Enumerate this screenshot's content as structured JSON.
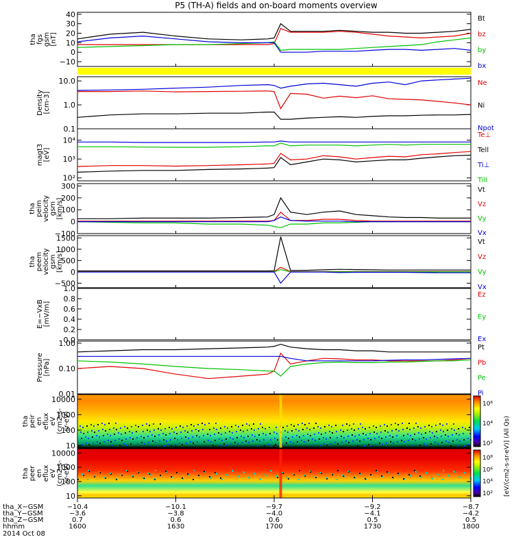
{
  "title": "P5 (TH-A) fields and on-board moments overview",
  "date_label": "2014 Oct 08",
  "colors": {
    "black": "#000000",
    "red": "#e00000",
    "green": "#00c000",
    "blue": "#0000d8",
    "yellow": "#ffff00"
  },
  "chart_data": [
    {
      "type": "line",
      "panel": "fgs",
      "ylabel": [
        "tha",
        "fgs",
        "gsm",
        "[nT]"
      ],
      "ylim": [
        -15,
        42
      ],
      "yticks": [
        -10,
        0,
        10,
        20,
        30,
        40
      ],
      "tick_labels": [
        "−10",
        "0",
        "10",
        "20",
        "30",
        "40"
      ],
      "x": [
        1600,
        1610,
        1620,
        1630,
        1640,
        1650,
        1658,
        1700,
        1702,
        1705,
        1710,
        1715,
        1720,
        1725,
        1730,
        1735,
        1740,
        1745,
        1750,
        1755,
        1800
      ],
      "series": [
        {
          "name": "Bt",
          "color": "black",
          "values": [
            14,
            19,
            21,
            17,
            14,
            13,
            14,
            15,
            30,
            22,
            22,
            22,
            23,
            22,
            21,
            21,
            20,
            20,
            21,
            22,
            24
          ]
        },
        {
          "name": "bz",
          "color": "red",
          "values": [
            8,
            8,
            8,
            8,
            8,
            8,
            8,
            9,
            25,
            21,
            21,
            21,
            22,
            21,
            19,
            17,
            16,
            15,
            16,
            17,
            20
          ]
        },
        {
          "name": "by",
          "color": "green",
          "values": [
            5,
            6,
            7,
            8,
            8,
            9,
            10,
            11,
            2,
            3,
            3,
            3,
            3,
            4,
            5,
            6,
            7,
            8,
            11,
            13,
            15
          ]
        },
        {
          "name": "bx",
          "color": "blue",
          "values": [
            11,
            15,
            17,
            14,
            11,
            10,
            10,
            10,
            0,
            0,
            0,
            1,
            1,
            1,
            2,
            3,
            3,
            2,
            3,
            4,
            2
          ]
        }
      ],
      "band_color": "yellow"
    },
    {
      "type": "line",
      "panel": "density",
      "ylabel": [
        "Density",
        "[cm-3]"
      ],
      "log": true,
      "ylim": [
        0.1,
        15
      ],
      "yticks": [
        0.1,
        1.0,
        10.0
      ],
      "tick_labels": [
        "0.1",
        "1.0",
        "10.0"
      ],
      "x": [
        1600,
        1610,
        1620,
        1630,
        1640,
        1650,
        1658,
        1700,
        1702,
        1705,
        1710,
        1715,
        1720,
        1725,
        1730,
        1735,
        1740,
        1745,
        1750,
        1755,
        1800
      ],
      "series": [
        {
          "name": "Ne",
          "color": "red",
          "values": [
            3.6,
            3.6,
            3.8,
            3.5,
            3.6,
            3.7,
            3.8,
            3.6,
            0.7,
            3.0,
            2.8,
            1.9,
            2.3,
            2.0,
            2.4,
            1.8,
            1.7,
            1.6,
            1.4,
            1.2,
            1.0
          ]
        },
        {
          "name": "Ni",
          "color": "black",
          "values": [
            0.3,
            0.38,
            0.42,
            0.42,
            0.45,
            0.45,
            0.5,
            0.5,
            0.25,
            0.25,
            0.28,
            0.3,
            0.32,
            0.3,
            0.33,
            0.35,
            0.35,
            0.37,
            0.38,
            0.38,
            0.4
          ]
        },
        {
          "name": "Npot",
          "color": "blue",
          "values": [
            4.0,
            4.2,
            4.5,
            5.0,
            5.5,
            6.5,
            7.0,
            6.5,
            5.0,
            6.0,
            7.5,
            8.0,
            7.0,
            6.0,
            8.0,
            9.0,
            7.0,
            10.0,
            11.0,
            12.0,
            13.0
          ]
        }
      ]
    },
    {
      "type": "line",
      "panel": "temperature",
      "ylabel": [
        "magt3",
        "[eV]"
      ],
      "log": true,
      "ylim": [
        70,
        40000
      ],
      "yticks": [
        100,
        1000,
        10000
      ],
      "tick_labels": [
        "10²",
        "10³",
        "10⁴"
      ],
      "x": [
        1600,
        1610,
        1620,
        1630,
        1640,
        1650,
        1658,
        1700,
        1702,
        1705,
        1710,
        1715,
        1720,
        1725,
        1730,
        1735,
        1740,
        1745,
        1750,
        1755,
        1800
      ],
      "series": [
        {
          "name": "Te⊥",
          "color": "red",
          "values": [
            400,
            450,
            450,
            420,
            450,
            500,
            550,
            600,
            2000,
            900,
            1000,
            1500,
            1300,
            1000,
            1200,
            1400,
            1300,
            1700,
            1900,
            2200,
            2500
          ]
        },
        {
          "name": "Tell",
          "color": "black",
          "values": [
            200,
            230,
            250,
            250,
            280,
            300,
            330,
            350,
            1200,
            500,
            700,
            1000,
            900,
            700,
            800,
            900,
            900,
            1100,
            1300,
            1500,
            1600
          ]
        },
        {
          "name": "Ti⊥",
          "color": "blue",
          "values": [
            8000,
            8000,
            7500,
            7500,
            7500,
            7500,
            8000,
            8000,
            9000,
            8000,
            8000,
            8000,
            8000,
            8000,
            8000,
            8000,
            8000,
            8000,
            8000,
            8000,
            8000
          ]
        },
        {
          "name": "Till",
          "color": "green",
          "values": [
            4500,
            4500,
            4300,
            4200,
            4200,
            4500,
            5000,
            5000,
            7000,
            5000,
            5500,
            5500,
            5500,
            5000,
            5500,
            6000,
            5500,
            6000,
            6000,
            6000,
            6000
          ]
        }
      ]
    },
    {
      "type": "line",
      "panel": "peim_velocity",
      "ylabel": [
        "tha",
        "peim",
        "velocity",
        "gsm",
        "[km/s]"
      ],
      "ylim": [
        -100,
        320
      ],
      "yticks": [
        -100,
        0,
        100,
        200,
        300
      ],
      "tick_labels": [
        "−100",
        "0",
        "100",
        "200",
        "300"
      ],
      "x": [
        1600,
        1610,
        1620,
        1630,
        1640,
        1650,
        1658,
        1700,
        1702,
        1705,
        1710,
        1715,
        1720,
        1725,
        1730,
        1735,
        1740,
        1745,
        1750,
        1755,
        1800
      ],
      "series": [
        {
          "name": "Vt",
          "color": "black",
          "values": [
            25,
            25,
            30,
            30,
            30,
            35,
            40,
            60,
            200,
            80,
            60,
            80,
            90,
            60,
            50,
            40,
            35,
            35,
            30,
            30,
            30
          ]
        },
        {
          "name": "Vz",
          "color": "red",
          "values": [
            5,
            5,
            5,
            5,
            5,
            5,
            5,
            10,
            80,
            10,
            10,
            20,
            20,
            10,
            5,
            5,
            5,
            5,
            5,
            5,
            5
          ]
        },
        {
          "name": "Vy",
          "color": "green",
          "values": [
            0,
            -5,
            -10,
            -10,
            -20,
            -20,
            -30,
            -40,
            -50,
            -20,
            -20,
            -10,
            -10,
            -5,
            0,
            0,
            0,
            0,
            0,
            0,
            0
          ]
        },
        {
          "name": "Vx",
          "color": "blue",
          "values": [
            0,
            0,
            0,
            0,
            0,
            0,
            0,
            10,
            40,
            10,
            5,
            5,
            5,
            0,
            0,
            0,
            0,
            0,
            0,
            0,
            0
          ]
        }
      ]
    },
    {
      "type": "line",
      "panel": "peem_velocity",
      "ylabel": [
        "tha",
        "peem",
        "velocity",
        "gsm",
        "[km/s]"
      ],
      "ylim": [
        -700,
        1600
      ],
      "yticks": [
        -500,
        0,
        500,
        1000,
        1500
      ],
      "tick_labels": [
        "−500",
        "0",
        "500",
        "1000",
        "1500"
      ],
      "x": [
        1600,
        1610,
        1620,
        1630,
        1640,
        1650,
        1658,
        1700,
        1702,
        1705,
        1710,
        1715,
        1720,
        1725,
        1730,
        1735,
        1740,
        1745,
        1750,
        1755,
        1800
      ],
      "series": [
        {
          "name": "Vt",
          "color": "black",
          "values": [
            40,
            40,
            40,
            40,
            40,
            40,
            40,
            50,
            1550,
            60,
            70,
            90,
            110,
            100,
            90,
            80,
            80,
            80,
            80,
            80,
            80
          ]
        },
        {
          "name": "Vz",
          "color": "red",
          "values": [
            10,
            10,
            10,
            10,
            10,
            10,
            10,
            10,
            200,
            10,
            10,
            10,
            10,
            10,
            10,
            10,
            10,
            10,
            10,
            10,
            10
          ]
        },
        {
          "name": "Vy",
          "color": "green",
          "values": [
            0,
            0,
            0,
            0,
            0,
            0,
            0,
            0,
            100,
            0,
            0,
            0,
            0,
            0,
            0,
            0,
            0,
            0,
            0,
            0,
            0
          ]
        },
        {
          "name": "Vx",
          "color": "blue",
          "values": [
            -10,
            -10,
            -10,
            -10,
            -10,
            -10,
            -10,
            -10,
            -500,
            -10,
            -10,
            -10,
            -30,
            -20,
            -20,
            -20,
            -20,
            -30,
            -40,
            -40,
            -40
          ]
        }
      ]
    },
    {
      "type": "line",
      "panel": "efield",
      "ylabel": [
        "E=−VxB",
        "[mV/m]"
      ],
      "ylim": [
        0.0,
        1.0
      ],
      "yticks": [
        0.0,
        0.2,
        0.4,
        0.6,
        0.8,
        1.0
      ],
      "tick_labels": [
        "0.0",
        "0.2",
        "0.4",
        "0.6",
        "0.8",
        "1.0"
      ],
      "x": [],
      "series": [
        {
          "name": "Ez",
          "color": "red",
          "values": []
        },
        {
          "name": "Ey",
          "color": "green",
          "values": []
        },
        {
          "name": "Ex",
          "color": "blue",
          "values": []
        }
      ]
    },
    {
      "type": "line",
      "panel": "pressure",
      "ylabel": [
        "Pressure",
        "[nPa]"
      ],
      "log": true,
      "ylim": [
        0.01,
        1.2
      ],
      "yticks": [
        0.01,
        0.1,
        1.0
      ],
      "tick_labels": [
        "0.01",
        "0.10",
        "1.00"
      ],
      "x": [
        1600,
        1610,
        1620,
        1630,
        1640,
        1650,
        1658,
        1700,
        1702,
        1705,
        1710,
        1715,
        1720,
        1725,
        1730,
        1735,
        1740,
        1745,
        1750,
        1755,
        1800
      ],
      "series": [
        {
          "name": "Pt",
          "color": "black",
          "values": [
            0.45,
            0.5,
            0.55,
            0.55,
            0.6,
            0.65,
            0.7,
            0.75,
            0.9,
            0.7,
            0.6,
            0.55,
            0.55,
            0.5,
            0.5,
            0.45,
            0.45,
            0.45,
            0.45,
            0.45,
            0.45
          ]
        },
        {
          "name": "Pb",
          "color": "red",
          "values": [
            0.1,
            0.12,
            0.1,
            0.06,
            0.04,
            0.05,
            0.06,
            0.08,
            0.4,
            0.15,
            0.2,
            0.25,
            0.24,
            0.22,
            0.22,
            0.2,
            0.2,
            0.2,
            0.2,
            0.22,
            0.25
          ]
        },
        {
          "name": "Pe",
          "color": "green",
          "values": [
            0.2,
            0.18,
            0.15,
            0.12,
            0.1,
            0.09,
            0.08,
            0.08,
            0.05,
            0.12,
            0.15,
            0.17,
            0.18,
            0.17,
            0.17,
            0.18,
            0.18,
            0.19,
            0.2,
            0.2,
            0.22
          ]
        },
        {
          "name": "Pi",
          "color": "blue",
          "values": [
            0.3,
            0.3,
            0.3,
            0.3,
            0.3,
            0.3,
            0.3,
            0.3,
            0.3,
            0.25,
            0.2,
            0.2,
            0.2,
            0.2,
            0.2,
            0.21,
            0.22,
            0.22,
            0.23,
            0.24,
            0.25
          ]
        }
      ]
    },
    {
      "type": "heatmap",
      "panel": "peir_eflux",
      "ylabel": [
        "tha",
        "peir",
        "en",
        "eflux",
        "eV",
        "(cm2-s-",
        "sr-eV)"
      ],
      "log": true,
      "ylim": [
        7,
        20000
      ],
      "yticks": [
        10,
        100,
        1000,
        10000
      ],
      "tick_labels": [
        "10",
        "100",
        "1000",
        "10000"
      ],
      "colorbar_ticks": [
        "10⁶",
        "10⁴",
        "10²"
      ]
    },
    {
      "type": "heatmap",
      "panel": "peer_eflux",
      "ylabel": [
        "tha",
        "peer",
        "en",
        "eflux",
        "eV",
        "(cm2-s-",
        "sr-eV)"
      ],
      "log": true,
      "ylim": [
        7,
        20000
      ],
      "yticks": [
        10,
        100,
        1000,
        10000
      ],
      "tick_labels": [
        "10",
        "100",
        "1000",
        "10000"
      ],
      "colorbar_ticks": [
        "10⁸",
        "10⁶",
        "10⁴",
        "10²"
      ],
      "colorbar_label": "[eV/(cm2-s-sr-eV)] (All Qs)"
    }
  ],
  "x_axis": {
    "xlim": [
      1600,
      1800
    ],
    "tick_times": [
      1600,
      1630,
      1700,
      1730,
      1800
    ],
    "row_labels": [
      "tha_X−GSM",
      "tha_Y−GSM",
      "tha_Z−GSM",
      "hhmm"
    ],
    "rows": [
      [
        "−10.4",
        "−10.1",
        "−9.7",
        "−9.2",
        "−8.7"
      ],
      [
        "−3.6",
        "−3.8",
        "−4.0",
        "−4.1",
        "−4.2"
      ],
      [
        "0.7",
        "0.6",
        "0.6",
        "0.5",
        "0.5"
      ],
      [
        "1600",
        "1630",
        "1700",
        "1730",
        "1800"
      ]
    ]
  }
}
